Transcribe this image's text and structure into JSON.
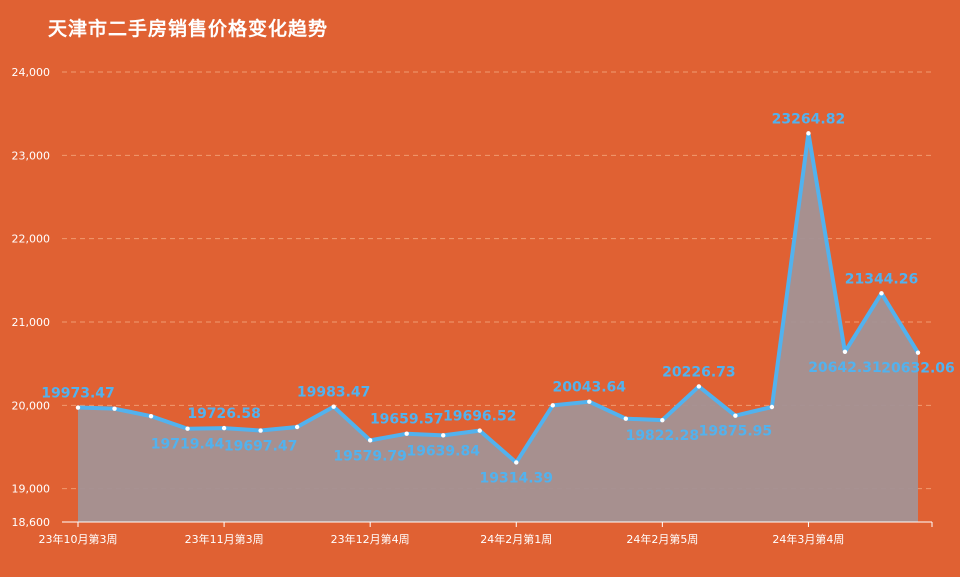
{
  "title": "天津市二手房销售价格变化趋势",
  "colors": {
    "background": "#e06133",
    "line": "#52b2ee",
    "area": "#a39295",
    "label": "#52b2ee",
    "axis_text": "#ffffff",
    "grid": "#f09a70"
  },
  "chart_data": {
    "type": "area",
    "title": "天津市二手房销售价格变化趋势",
    "xlabel": "",
    "ylabel": "",
    "ylim": [
      18600,
      24000
    ],
    "y_ticks": [
      "18,600",
      "19,000",
      "20,000",
      "21,000",
      "22,000",
      "23,000",
      "24,000"
    ],
    "y_tick_values": [
      18600,
      19000,
      20000,
      21000,
      22000,
      23000,
      24000
    ],
    "x_tick_labels": [
      "23年10月第3周",
      "23年11月第3周",
      "23年12月第4周",
      "24年2月第1周",
      "24年2月第5周",
      "24年3月第4周"
    ],
    "x_tick_indices": [
      0,
      4,
      8,
      12,
      16,
      20
    ],
    "grid": true,
    "series": [
      {
        "values": [
          19973.47,
          19960,
          19870,
          19719.44,
          19726.58,
          19697.47,
          19740,
          19983.47,
          19579.79,
          19659.57,
          19639.84,
          19696.52,
          19314.39,
          20000,
          20043.64,
          19840,
          19822.28,
          20226.73,
          19875.95,
          19980,
          23264.82,
          20642.31,
          21344.26,
          20632.06
        ]
      }
    ],
    "data_labels": [
      {
        "index": 0,
        "text": "19973.47",
        "pos": "above"
      },
      {
        "index": 3,
        "text": "19719.44",
        "pos": "below"
      },
      {
        "index": 4,
        "text": "19726.58",
        "pos": "above"
      },
      {
        "index": 5,
        "text": "19697.47",
        "pos": "below"
      },
      {
        "index": 7,
        "text": "19983.47",
        "pos": "above"
      },
      {
        "index": 8,
        "text": "19579.79",
        "pos": "below"
      },
      {
        "index": 9,
        "text": "19659.57",
        "pos": "above"
      },
      {
        "index": 10,
        "text": "19639.84",
        "pos": "below"
      },
      {
        "index": 11,
        "text": "19696.52",
        "pos": "above"
      },
      {
        "index": 12,
        "text": "19314.39",
        "pos": "below"
      },
      {
        "index": 14,
        "text": "20043.64",
        "pos": "above"
      },
      {
        "index": 16,
        "text": "19822.28",
        "pos": "below"
      },
      {
        "index": 17,
        "text": "20226.73",
        "pos": "above"
      },
      {
        "index": 18,
        "text": "19875.95",
        "pos": "below"
      },
      {
        "index": 20,
        "text": "23264.82",
        "pos": "above"
      },
      {
        "index": 21,
        "text": "20642.31",
        "pos": "below"
      },
      {
        "index": 22,
        "text": "21344.26",
        "pos": "above"
      },
      {
        "index": 23,
        "text": "20632.06",
        "pos": "below"
      }
    ]
  }
}
